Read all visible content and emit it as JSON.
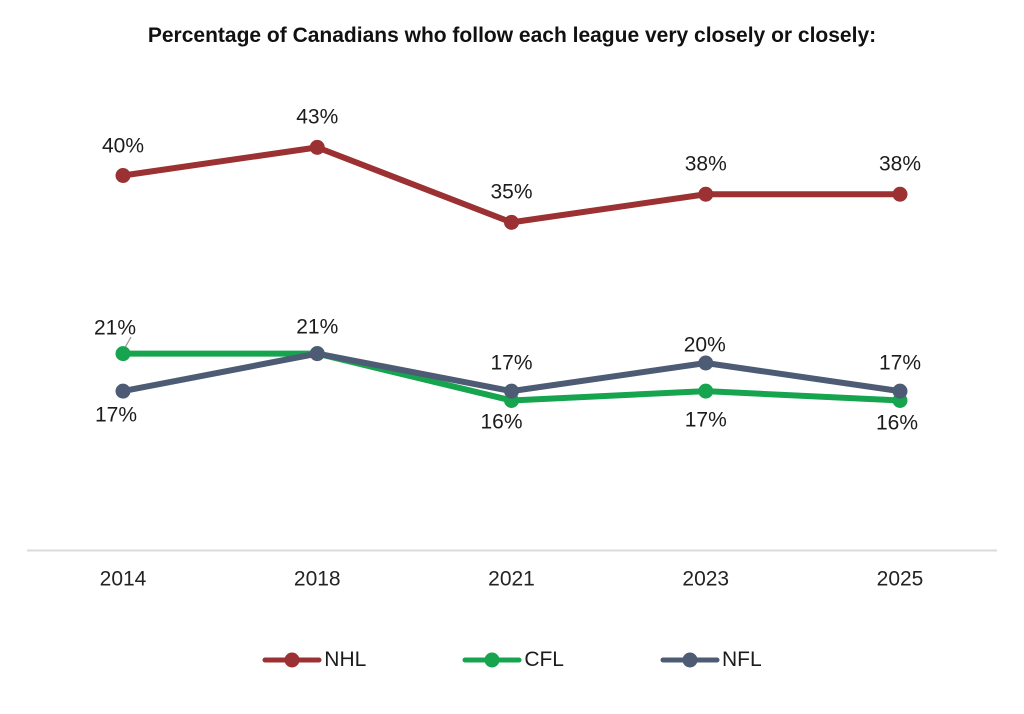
{
  "title": "Percentage of Canadians who follow each league very closely or closely:",
  "colors": {
    "nhl": "#9B3132",
    "cfl": "#16A44F",
    "nfl": "#4D5C74",
    "axis_line": "#DBDBDB",
    "label_text": "#1C1C1C",
    "leader_line": "#9E9E9E"
  },
  "chart_data": {
    "type": "line",
    "title": "Percentage of Canadians who follow each league very closely or closely:",
    "categories": [
      "2014",
      "2018",
      "2021",
      "2023",
      "2025"
    ],
    "series": [
      {
        "name": "NHL",
        "color": "#9B3132",
        "values": [
          40,
          43,
          35,
          38,
          38
        ],
        "point_labels": [
          "40%",
          "43%",
          "35%",
          "38%",
          "38%"
        ],
        "label_offsets": [
          [
            0,
            -30
          ],
          [
            0,
            -30
          ],
          [
            0,
            -30
          ],
          [
            0,
            -30
          ],
          [
            0,
            -30
          ]
        ]
      },
      {
        "name": "CFL",
        "color": "#16A44F",
        "values": [
          21,
          21,
          16,
          17,
          16
        ],
        "point_labels": [
          "21%",
          "21%",
          "16%",
          "17%",
          "16%"
        ],
        "label_offsets": [
          [
            -8,
            -26
          ],
          [
            0,
            -27
          ],
          [
            -10,
            21
          ],
          [
            0,
            29
          ],
          [
            -3,
            22
          ]
        ]
      },
      {
        "name": "NFL",
        "color": "#4D5C74",
        "values": [
          17,
          21,
          17,
          20,
          17
        ],
        "point_labels": [
          "17%",
          null,
          "17%",
          "20%",
          "17%"
        ],
        "label_offsets": [
          [
            -7,
            24
          ],
          null,
          [
            0,
            -28
          ],
          [
            -1,
            -18
          ],
          [
            0,
            -28
          ]
        ]
      }
    ],
    "xlabel": "",
    "ylabel": "",
    "ylim": [
      0,
      50
    ],
    "grid": false,
    "y_axis_shown": false,
    "baseline_shown": true,
    "legend_position": "bottom",
    "annotations": [
      {
        "type": "leader-line",
        "note": "connector from 2014 CFL 21% label to its point"
      }
    ]
  }
}
